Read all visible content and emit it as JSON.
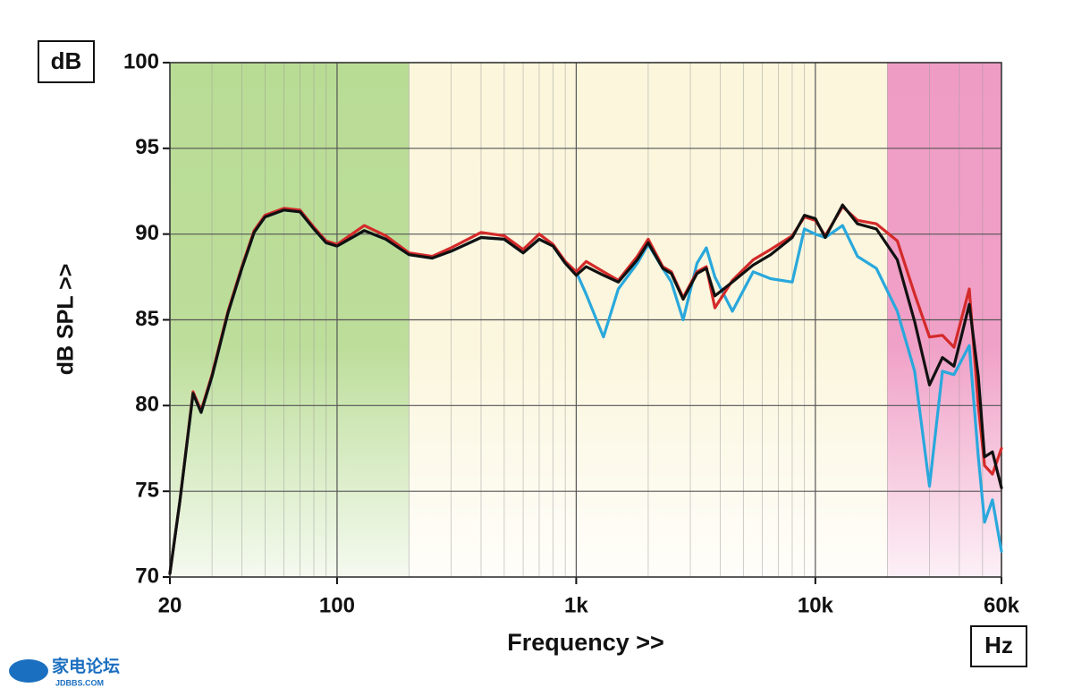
{
  "chart_data": {
    "type": "line",
    "title": null,
    "x_label": "Frequency >>",
    "y_label": "dB SPL >>",
    "y_unit_box": "dB",
    "x_unit_box": "Hz",
    "log_x": true,
    "grid": true,
    "xlim": [
      20,
      60000
    ],
    "ylim": [
      70,
      100
    ],
    "xticks": [
      20,
      100,
      {
        "value": 1000,
        "label": "1k"
      },
      {
        "value": 10000,
        "label": "10k"
      },
      {
        "value": 60000,
        "label": "60k"
      }
    ],
    "x_minor_grid": [
      30,
      40,
      50,
      60,
      70,
      80,
      90,
      200,
      300,
      400,
      500,
      600,
      700,
      800,
      900,
      2000,
      3000,
      4000,
      5000,
      6000,
      7000,
      8000,
      9000,
      20000,
      30000,
      40000,
      50000
    ],
    "yticks": [
      70,
      75,
      80,
      85,
      90,
      95,
      100
    ],
    "shaded_regions": [
      {
        "from": 20,
        "to": 200,
        "color": "#b9dc95"
      },
      {
        "from": 200,
        "to": 20000,
        "color": "#fbf6dc"
      },
      {
        "from": 20000,
        "to": 60000,
        "color": "#ef9cc4"
      }
    ],
    "x": [
      20,
      22,
      25,
      27,
      30,
      35,
      40,
      45,
      50,
      60,
      70,
      80,
      90,
      100,
      130,
      160,
      200,
      250,
      300,
      400,
      500,
      600,
      700,
      800,
      900,
      1000,
      1100,
      1300,
      1500,
      1800,
      2000,
      2300,
      2500,
      2800,
      3200,
      3500,
      3800,
      4500,
      5500,
      6500,
      8000,
      9000,
      10000,
      11000,
      13000,
      15000,
      18000,
      22000,
      26000,
      30000,
      34000,
      38000,
      44000,
      48000,
      51000,
      55000,
      60000
    ],
    "series": [
      {
        "color": "#29a8dc",
        "values": [
          70.2,
          74.4,
          80.7,
          79.6,
          81.7,
          85.4,
          88.0,
          90.1,
          91.0,
          91.4,
          91.3,
          90.3,
          89.5,
          89.3,
          90.2,
          89.7,
          88.8,
          88.6,
          89.0,
          89.8,
          89.7,
          88.9,
          89.7,
          89.3,
          88.3,
          87.8,
          86.5,
          84.0,
          86.8,
          88.3,
          89.4,
          88.0,
          87.2,
          85.0,
          88.3,
          89.2,
          87.5,
          85.5,
          87.8,
          87.4,
          87.2,
          90.3,
          90.0,
          89.8,
          90.5,
          88.7,
          88.0,
          85.5,
          82.0,
          75.3,
          82.0,
          81.8,
          83.5,
          77.0,
          73.2,
          74.5,
          71.5
        ]
      },
      {
        "color": "#d42a2a",
        "values": [
          70.2,
          74.4,
          80.8,
          79.7,
          81.8,
          85.5,
          88.1,
          90.2,
          91.1,
          91.5,
          91.4,
          90.4,
          89.6,
          89.4,
          90.5,
          89.9,
          88.9,
          88.7,
          89.2,
          90.1,
          89.9,
          89.1,
          90.0,
          89.4,
          88.4,
          87.8,
          88.4,
          87.8,
          87.3,
          88.7,
          89.7,
          88.1,
          87.8,
          86.3,
          87.8,
          88.1,
          85.7,
          87.3,
          88.5,
          89.1,
          89.9,
          91.0,
          90.8,
          89.9,
          91.6,
          90.8,
          90.6,
          89.6,
          86.5,
          84.0,
          84.1,
          83.4,
          86.8,
          80.0,
          76.5,
          76.0,
          77.5
        ]
      },
      {
        "color": "#111111",
        "values": [
          70.2,
          74.4,
          80.7,
          79.6,
          81.7,
          85.4,
          88.0,
          90.1,
          91.0,
          91.4,
          91.3,
          90.3,
          89.5,
          89.3,
          90.2,
          89.7,
          88.8,
          88.6,
          89.0,
          89.8,
          89.7,
          88.9,
          89.7,
          89.3,
          88.3,
          87.6,
          88.1,
          87.6,
          87.2,
          88.5,
          89.5,
          88.0,
          87.7,
          86.2,
          87.7,
          88.0,
          86.4,
          87.2,
          88.2,
          88.8,
          89.8,
          91.1,
          90.9,
          89.8,
          91.7,
          90.6,
          90.3,
          88.5,
          84.9,
          81.2,
          82.8,
          82.3,
          85.9,
          81.7,
          77.0,
          77.3,
          75.2
        ]
      }
    ]
  },
  "watermark": {
    "name": "家电论坛",
    "site": "JDBBS.COM"
  }
}
